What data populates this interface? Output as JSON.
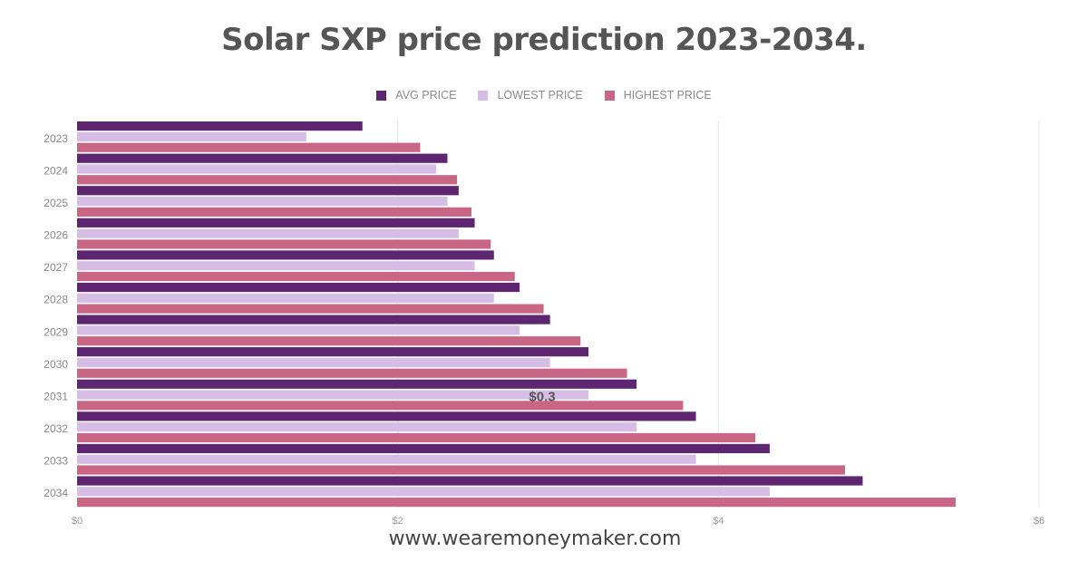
{
  "chart_data": {
    "type": "bar",
    "orientation": "horizontal",
    "title": "Solar SXP price prediction 2023-2034.",
    "xlabel": "",
    "ylabel": "",
    "categories": [
      "2023",
      "2024",
      "2025",
      "2026",
      "2027",
      "2028",
      "2029",
      "2030",
      "2031",
      "2032",
      "2033",
      "2034"
    ],
    "series": [
      {
        "name": "AVG PRICE",
        "color": "#5e2570",
        "values": [
          1.78,
          2.31,
          2.38,
          2.48,
          2.6,
          2.76,
          2.95,
          3.19,
          3.49,
          3.86,
          4.32,
          4.9
        ]
      },
      {
        "name": "LOWEST PRICE",
        "color": "#d6bde6",
        "values": [
          1.43,
          2.24,
          2.31,
          2.38,
          2.48,
          2.6,
          2.76,
          2.95,
          3.19,
          3.49,
          3.86,
          4.32
        ]
      },
      {
        "name": "HIGHEST PRICE",
        "color": "#c96686",
        "values": [
          2.14,
          2.37,
          2.46,
          2.58,
          2.73,
          2.91,
          3.14,
          3.43,
          3.78,
          4.23,
          4.79,
          5.48
        ]
      }
    ],
    "xlim": [
      0,
      6
    ],
    "xticks": [
      0,
      2,
      4,
      6
    ],
    "xtick_labels": [
      "$0",
      "$2",
      "$4",
      "$6"
    ],
    "grid": true,
    "legend_position": "top-center",
    "annotations": [
      {
        "text": "$0.3",
        "near_category": "2031"
      }
    ]
  },
  "footer": {
    "website": "www.wearemoneymaker.com"
  }
}
